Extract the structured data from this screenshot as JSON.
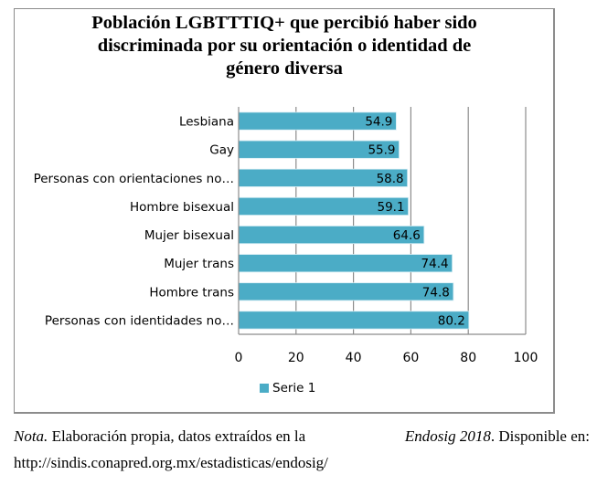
{
  "chart_data": {
    "type": "bar",
    "orientation": "horizontal",
    "title": "Población LGBTTTIQ+ que percibió haber sido discriminada por su orientación o identidad de género diversa",
    "title_lines": [
      "Población LGBTTTIQ+ que percibió haber sido",
      "discriminada por su orientación o identidad de",
      "género diversa"
    ],
    "categories": [
      "Lesbiana",
      "Gay",
      "Personas con orientaciones no…",
      "Hombre bisexual",
      "Mujer bisexual",
      "Mujer trans",
      "Hombre trans",
      "Personas con identidades no…"
    ],
    "series": [
      {
        "name": "Serie 1",
        "color": "#4bacc6",
        "values": [
          54.9,
          55.9,
          58.8,
          59.1,
          64.6,
          74.4,
          74.8,
          80.2
        ]
      }
    ],
    "data_labels": [
      "54.9",
      "55.9",
      "58.8",
      "59.1",
      "64.6",
      "74.4",
      "74.8",
      "80.2"
    ],
    "xlabel": "",
    "ylabel": "",
    "xlim": [
      0,
      100
    ],
    "xticks": [
      0,
      20,
      40,
      60,
      80,
      100
    ],
    "xtick_labels": [
      "0",
      "20",
      "40",
      "60",
      "80",
      "100"
    ],
    "grid": "vertical",
    "legend": {
      "position": "bottom",
      "entries": [
        "Serie 1"
      ]
    }
  },
  "note": {
    "label": "Nota.",
    "text_before": "Elaboración propia, datos extraídos en la",
    "source_italic": "Endosig 2018",
    "text_after": ". Disponible en:",
    "url": "http://sindis.conapred.org.mx/estadisticas/endosig/"
  }
}
